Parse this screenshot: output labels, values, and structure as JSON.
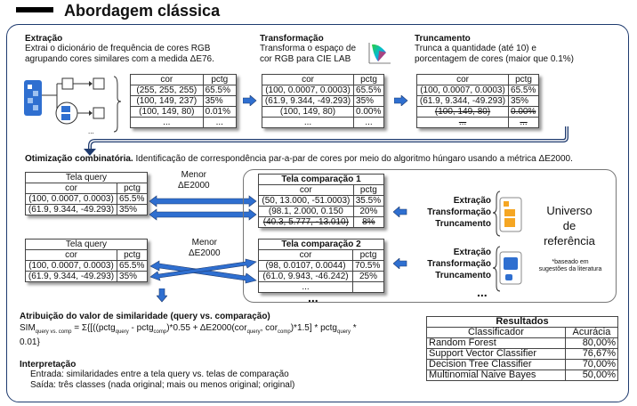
{
  "title": "Abordagem clássica",
  "extracao": {
    "head": "Extração",
    "text1": "Extrai o dicionário de frequência de cores RGB",
    "text2": "agrupando cores similares com a medida ΔE76.",
    "table": {
      "cols": [
        "cor",
        "pctg"
      ],
      "rows": [
        [
          "(255, 255, 255)",
          "65.5%"
        ],
        [
          "(100, 149, 237)",
          "35%"
        ],
        [
          "(100, 149, 80)",
          "0.01%"
        ],
        [
          "...",
          "..."
        ]
      ]
    }
  },
  "transformacao": {
    "head": "Transformação",
    "text1": "Transforma o espaço de",
    "text2": "cor RGB para CIE LAB",
    "table": {
      "cols": [
        "cor",
        "pctg"
      ],
      "rows": [
        [
          "(100, 0.0007,  0.0003)",
          "65.5%"
        ],
        [
          "(61.9, 9.344,  -49.293)",
          "35%"
        ],
        [
          "(100, 149, 80)",
          "0.00%"
        ],
        [
          "...",
          "..."
        ]
      ]
    }
  },
  "truncamento": {
    "head": "Truncamento",
    "text1": "Trunca a quantidade (até 10) e",
    "text2": "porcentagem de cores (maior que 0.1%)",
    "table": {
      "cols": [
        "cor",
        "pctg"
      ],
      "rows": [
        [
          "(100, 0.0007,  0.0003)",
          "65.5%"
        ],
        [
          "(61.9, 9.344,  -49.293)",
          "35%"
        ],
        [
          "(100, 149, 80)",
          "0.00%"
        ],
        [
          "...",
          "..."
        ]
      ]
    }
  },
  "otimizacao": {
    "head": "Otimização combinatória.",
    "text": " Identificação de correspondência par-a-par de cores por meio do algoritmo húngaro usando a métrica ΔE2000."
  },
  "query1": {
    "title": "Tela query",
    "cols": [
      "cor",
      "pctg"
    ],
    "rows": [
      [
        "(100, 0.0007,  0.0003)",
        "65.5%"
      ],
      [
        "(61.9, 9.344,  -49.293)",
        "35%"
      ]
    ]
  },
  "query2": {
    "title": "Tela query",
    "cols": [
      "cor",
      "pctg"
    ],
    "rows": [
      [
        "(100, 0.0007,  0.0003)",
        "65.5%"
      ],
      [
        "(61.9, 9.344,  -49.293)",
        "35%"
      ]
    ]
  },
  "menor1": {
    "line1": "Menor",
    "line2": "ΔE2000"
  },
  "menor2": {
    "line1": "Menor",
    "line2": "ΔE2000"
  },
  "comp1": {
    "title": "Tela comparação 1",
    "cols": [
      "cor",
      "pctg"
    ],
    "rows": [
      [
        "(50, 13.000,  -51.0003)",
        "35.5%"
      ],
      [
        "(98.1, 2.000,  0.150",
        "20%"
      ],
      [
        "(40.3, 5.777, -13.010)",
        "8%"
      ]
    ]
  },
  "comp2": {
    "title": "Tela comparação 2",
    "cols": [
      "cor",
      "pctg"
    ],
    "rows": [
      [
        "(98, 0.0107,  0.0044)",
        "70.5%"
      ],
      [
        "(61.0, 9.943,  -46.242)",
        "25%"
      ],
      [
        "...",
        ""
      ]
    ]
  },
  "ellipsis": "...",
  "ext_block1": [
    "Extração",
    "Transformação",
    "Truncamento"
  ],
  "ext_block2": [
    "Extração",
    "Transformação",
    "Truncamento"
  ],
  "universo": [
    "Universo",
    "de",
    "referência"
  ],
  "baseado": [
    "*baseado em",
    "sugestões da literatura"
  ],
  "atribuicao": {
    "head": "Atribuição do valor de similaridade (query vs. comparação)",
    "formula": "SIM",
    "sub_q": "query vs. comp",
    "f1": " = Σ{[((pctg",
    "sub_query": "query",
    "f2": " - pctg",
    "sub_comp": "comp",
    "f3": ")*0.55 + ΔE2000(cor",
    "f4": ", cor",
    "f5": ")*1.5] * pctg",
    "f6": " *",
    "f7": "0.01}"
  },
  "interpretacao": {
    "head": "Interpretação",
    "line1": "Entrada: similaridades entre a tela query vs. telas de comparação",
    "line2": "Saída: três classes (nada original; mais ou menos original; original)"
  },
  "resultados": {
    "title": "Resultados",
    "cols": [
      "Classificador",
      "Acurácia"
    ],
    "rows": [
      [
        "Random Forest",
        "80,00%"
      ],
      [
        "Support Vector Classifier",
        "76,67%"
      ],
      [
        "Decision Tree Classifier",
        "70,00%"
      ],
      [
        "Multinomial Naive Bayes",
        "50,00%"
      ]
    ]
  },
  "colors": {
    "frame": "#1f3b6f",
    "arrow": "#2f6fd0",
    "orange": "#f5a623",
    "blue_icon": "#2f6fd0"
  }
}
